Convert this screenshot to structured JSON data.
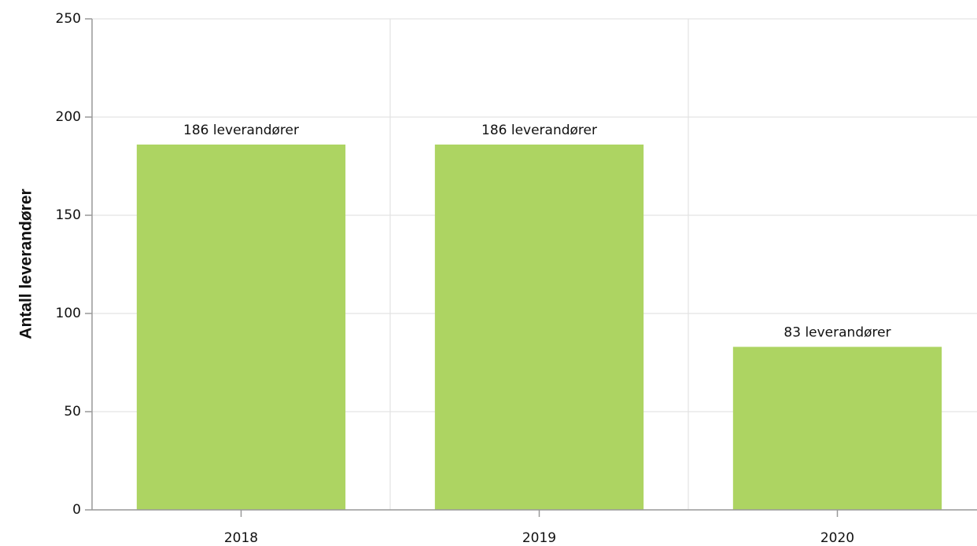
{
  "chart_data": {
    "type": "bar",
    "categories": [
      "2018",
      "2019",
      "2020"
    ],
    "values": [
      186,
      186,
      83
    ],
    "value_labels": [
      "186 leverandører",
      "186 leverandører",
      "83 leverandører"
    ],
    "color": "#add462",
    "ylabel": "Antall leverandører",
    "ylim": [
      0,
      250
    ],
    "yticks": [
      0,
      50,
      100,
      150,
      200,
      250
    ],
    "grid": true
  }
}
